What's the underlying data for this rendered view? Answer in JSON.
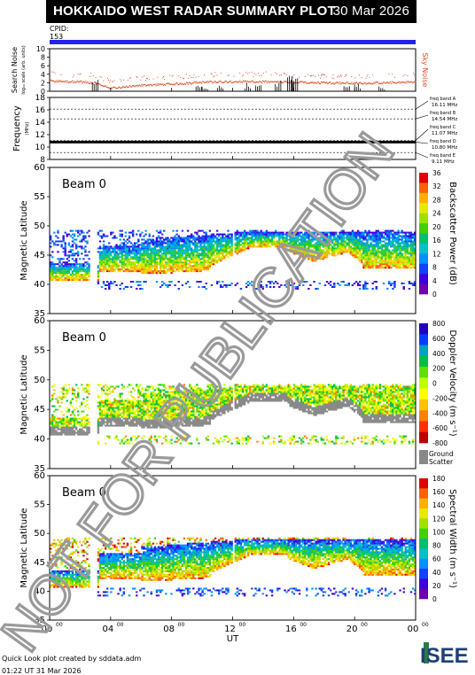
{
  "header": {
    "title": "HOKKAIDO WEST RADAR SUMMARY PLOT",
    "date": "30 Mar 2026",
    "cpid_label": "CPID:",
    "cpid_value": "153"
  },
  "colors": {
    "cpid_bar": "#2222ee",
    "noise": "#e0502a",
    "ground_scatter": "#888888"
  },
  "chart_data": [
    {
      "type": "line",
      "name": "noise-panel",
      "ylabel": "Search Noise",
      "ylabel_sub": "log₁₀ scale (arb. units)",
      "right_label": "Sky Noise",
      "ylim": [
        0,
        10
      ],
      "yticks": [
        "0",
        "2",
        "4",
        "6",
        "8",
        "10"
      ],
      "x": [
        0,
        2,
        3,
        4,
        6,
        8,
        10,
        12,
        14,
        16,
        18,
        20,
        22,
        24
      ],
      "values": [
        2.5,
        2.3,
        2.0,
        0.8,
        1.5,
        1.8,
        2.2,
        2.4,
        2.3,
        2.2,
        2.1,
        2.0,
        2.1,
        2.3
      ]
    },
    {
      "type": "line",
      "name": "frequency-panel",
      "ylabel": "Frequency",
      "ylabel_sub": "(MHz)",
      "ylim": [
        8,
        18
      ],
      "yticks": [
        "8",
        "10",
        "12",
        "14",
        "16",
        "18"
      ],
      "bands": [
        {
          "label": "freq band A",
          "freq": "16.11 MHz",
          "value": 16.11
        },
        {
          "label": "freq band B",
          "freq": "14.54 MHz",
          "value": 14.54
        },
        {
          "label": "freq band C",
          "freq": "11.07 MHz",
          "value": 11.07
        },
        {
          "label": "freq band D",
          "freq": "10.80 MHz",
          "value": 10.8
        },
        {
          "label": "freq band E",
          "freq": "9.11 MHz",
          "value": 9.11
        }
      ],
      "operating_freq": 10.8
    },
    {
      "type": "heatmap",
      "name": "power-panel",
      "beam_label": "Beam  0",
      "ylabel": "Magnetic Latitude",
      "ylim": [
        35,
        60
      ],
      "yticks": [
        "35",
        "40",
        "45",
        "50",
        "55",
        "60"
      ],
      "colorbar_label": "Backscatter Power (dB)",
      "colorbar_ticks": [
        "0",
        "4",
        "8",
        "12",
        "16",
        "20",
        "24",
        "28",
        "32",
        "36"
      ]
    },
    {
      "type": "heatmap",
      "name": "velocity-panel",
      "beam_label": "Beam  0",
      "ylabel": "Magnetic Latitude",
      "ylim": [
        35,
        60
      ],
      "yticks": [
        "35",
        "40",
        "45",
        "50",
        "55",
        "60"
      ],
      "colorbar_label": "Doppler Velocity (m s⁻¹)",
      "colorbar_ticks": [
        "-800",
        "-600",
        "-400",
        "-200",
        "0",
        "200",
        "400",
        "600",
        "800"
      ],
      "ground_scatter_label": "Ground",
      "ground_scatter_label2": "Scatter"
    },
    {
      "type": "heatmap",
      "name": "width-panel",
      "beam_label": "Beam  0",
      "ylabel": "Magnetic Latitude",
      "ylim": [
        35,
        60
      ],
      "yticks": [
        "35",
        "40",
        "45",
        "50",
        "55",
        "60"
      ],
      "colorbar_label": "Spectral Width (m s⁻¹)",
      "colorbar_ticks": [
        "0",
        "20",
        "40",
        "60",
        "80",
        "100",
        "120",
        "140",
        "160",
        "180"
      ]
    }
  ],
  "xaxis": {
    "label": "UT",
    "xlim": [
      0,
      24
    ],
    "ticks": [
      {
        "hour": 0,
        "label": "00",
        "sup": "00"
      },
      {
        "hour": 4,
        "label": "04",
        "sup": "00"
      },
      {
        "hour": 8,
        "label": "08",
        "sup": "00"
      },
      {
        "hour": 12,
        "label": "12",
        "sup": "00"
      },
      {
        "hour": 16,
        "label": "16",
        "sup": "00"
      },
      {
        "hour": 20,
        "label": "20",
        "sup": "00"
      },
      {
        "hour": 24,
        "label": "00",
        "sup": "00"
      }
    ]
  },
  "watermark": "NOT FOR PUBLICATION",
  "footer": {
    "line1": "Quick Look plot created by sddata.adm",
    "line2": "01:22 UT 31 Mar 2026",
    "logo_text": "ISEE"
  }
}
